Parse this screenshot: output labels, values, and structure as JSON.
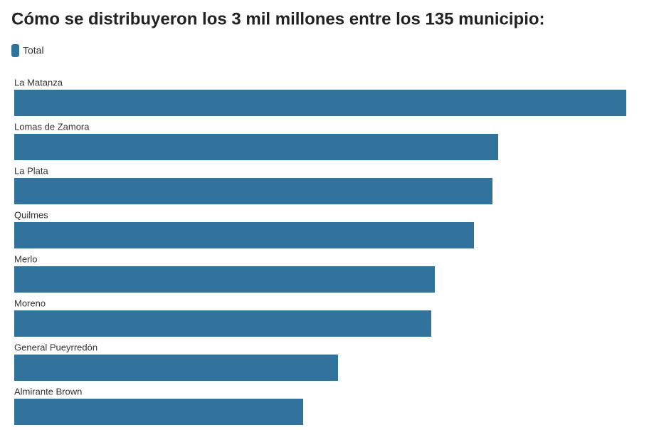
{
  "chart_data": {
    "type": "bar",
    "orientation": "horizontal",
    "title": "Cómo se distribuyeron los 3 mil millones entre los 135 municipio:",
    "categories": [
      "La Matanza",
      "Lomas de Zamora",
      "La Plata",
      "Quilmes",
      "Merlo",
      "Moreno",
      "General Pueyrredón",
      "Almirante Brown"
    ],
    "series": [
      {
        "name": "Total",
        "color": "#31739c",
        "values": [
          860,
          680,
          672,
          646,
          591,
          586,
          455,
          406
        ]
      }
    ],
    "xlim": [
      0,
      860
    ]
  }
}
